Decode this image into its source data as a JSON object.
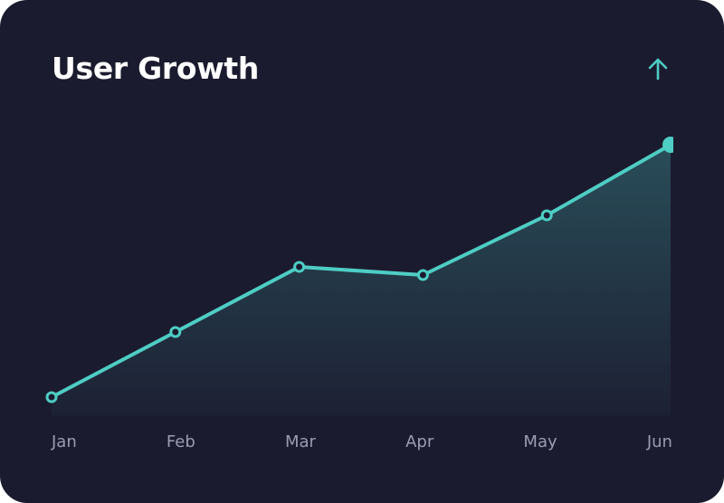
{
  "chart_data": {
    "type": "area-line",
    "title": "User Growth",
    "categories": [
      "Jan",
      "Feb",
      "Mar",
      "Apr",
      "May",
      "Jun"
    ],
    "values": [
      7,
      31,
      55,
      52,
      74,
      100
    ],
    "color": "#4ecdc4",
    "ylim": [
      0,
      100
    ]
  }
}
